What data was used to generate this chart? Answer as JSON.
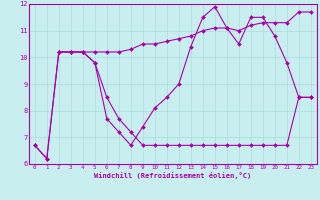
{
  "xlabel": "Windchill (Refroidissement éolien,°C)",
  "xlim": [
    -0.5,
    23.5
  ],
  "ylim": [
    6,
    12
  ],
  "xticks": [
    0,
    1,
    2,
    3,
    4,
    5,
    6,
    7,
    8,
    9,
    10,
    11,
    12,
    13,
    14,
    15,
    16,
    17,
    18,
    19,
    20,
    21,
    22,
    23
  ],
  "yticks": [
    6,
    7,
    8,
    9,
    10,
    11,
    12
  ],
  "bg_color": "#c8eef0",
  "line_color": "#aa00aa",
  "grid_color": "#aadddd",
  "series": [
    {
      "x": [
        0,
        1,
        2,
        3,
        4,
        5,
        6,
        7,
        8,
        9,
        10,
        11,
        12,
        13,
        14,
        15,
        16,
        17,
        18,
        19,
        20,
        21,
        22,
        23
      ],
      "y": [
        6.7,
        6.2,
        10.2,
        10.2,
        10.2,
        9.8,
        8.5,
        7.7,
        7.2,
        6.7,
        6.7,
        6.7,
        6.7,
        6.7,
        6.7,
        6.7,
        6.7,
        6.7,
        6.7,
        6.7,
        6.7,
        6.7,
        8.5,
        8.5
      ]
    },
    {
      "x": [
        0,
        1,
        2,
        3,
        4,
        5,
        6,
        7,
        8,
        9,
        10,
        11,
        12,
        13,
        14,
        15,
        16,
        17,
        18,
        19,
        20,
        21,
        22,
        23
      ],
      "y": [
        6.7,
        6.2,
        10.2,
        10.2,
        10.2,
        9.8,
        7.7,
        7.2,
        6.7,
        7.4,
        8.1,
        8.5,
        9.0,
        10.4,
        11.5,
        11.9,
        11.1,
        10.5,
        11.5,
        11.5,
        10.8,
        9.8,
        8.5,
        8.5
      ]
    },
    {
      "x": [
        2,
        3,
        4,
        5,
        6,
        7,
        8,
        9,
        10,
        11,
        12,
        13,
        14,
        15,
        16,
        17,
        18,
        19,
        20,
        21,
        22,
        23
      ],
      "y": [
        10.2,
        10.2,
        10.2,
        10.2,
        10.2,
        10.2,
        10.3,
        10.5,
        10.5,
        10.6,
        10.7,
        10.8,
        11.0,
        11.1,
        11.1,
        11.0,
        11.2,
        11.3,
        11.3,
        11.3,
        11.7,
        11.7
      ]
    }
  ]
}
